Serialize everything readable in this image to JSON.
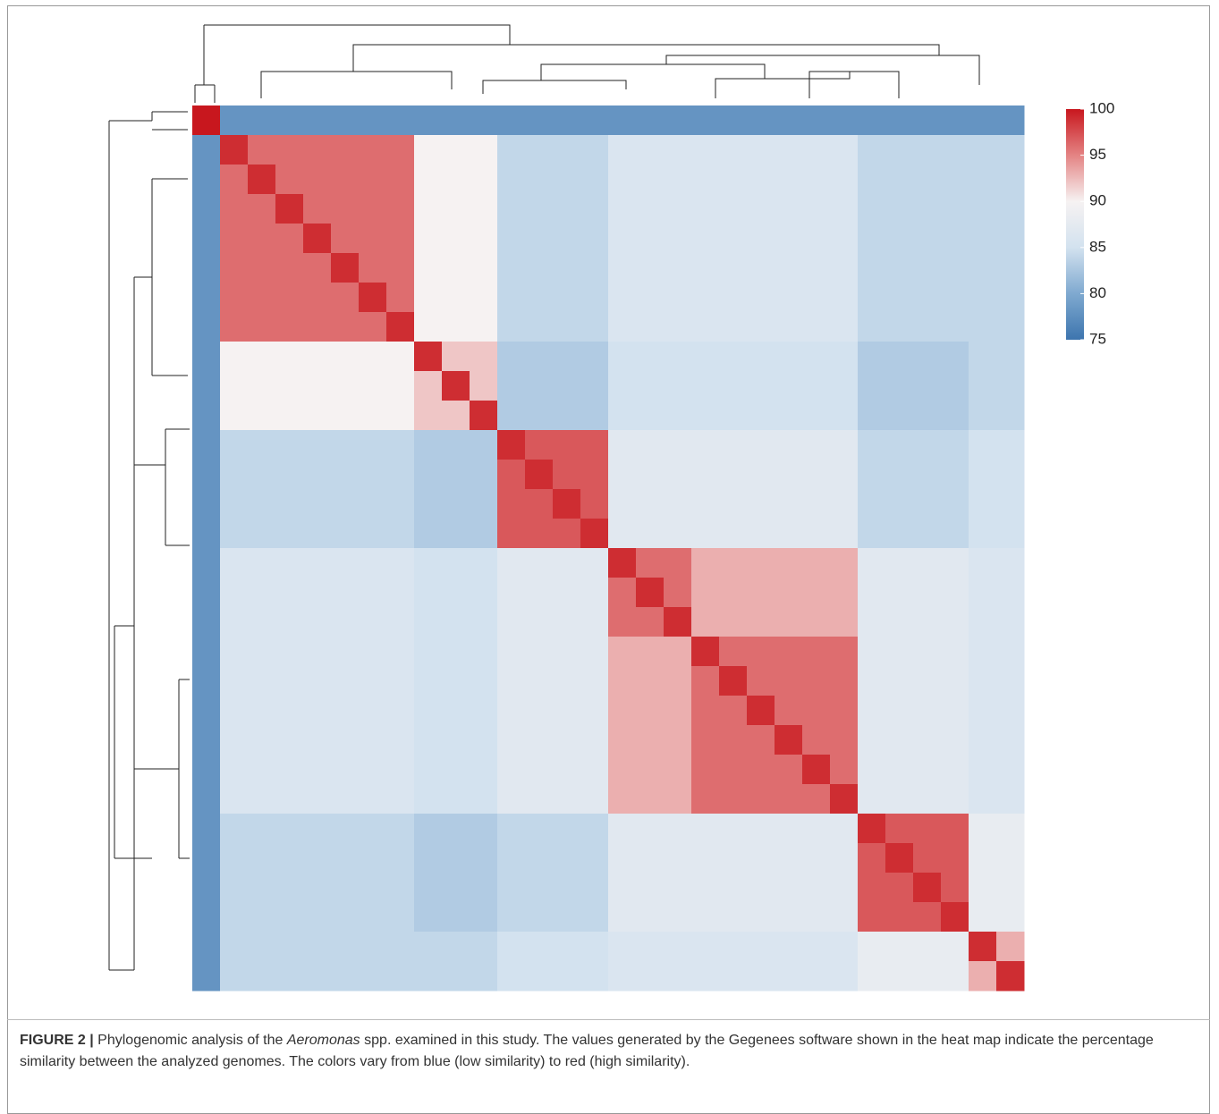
{
  "chart_data": {
    "type": "heatmap",
    "zlim": [
      75,
      100
    ],
    "zticks": [
      75,
      80,
      85,
      90,
      95,
      100
    ],
    "colors": [
      "#3d75ae",
      "#7fa9d0",
      "#d3e2ef",
      "#f6f2f2",
      "#e48383",
      "#c8171e"
    ],
    "z": [
      [
        100,
        78,
        78,
        78,
        78,
        78,
        78,
        78,
        78,
        78,
        78,
        78,
        78,
        78,
        78,
        78,
        78,
        78,
        78,
        78,
        78,
        78,
        78,
        78,
        78,
        78,
        78,
        78,
        78,
        78
      ],
      [
        78,
        99,
        96,
        96,
        96,
        96,
        96,
        96,
        90,
        90,
        90,
        84,
        84,
        84,
        84,
        86,
        86,
        86,
        86,
        86,
        86,
        86,
        86,
        86,
        84,
        84,
        84,
        84,
        84,
        84
      ],
      [
        78,
        96,
        99,
        96,
        96,
        96,
        96,
        96,
        90,
        90,
        90,
        84,
        84,
        84,
        84,
        86,
        86,
        86,
        86,
        86,
        86,
        86,
        86,
        86,
        84,
        84,
        84,
        84,
        84,
        84
      ],
      [
        78,
        96,
        96,
        99,
        96,
        96,
        96,
        96,
        90,
        90,
        90,
        84,
        84,
        84,
        84,
        86,
        86,
        86,
        86,
        86,
        86,
        86,
        86,
        86,
        84,
        84,
        84,
        84,
        84,
        84
      ],
      [
        78,
        96,
        96,
        96,
        99,
        96,
        96,
        96,
        90,
        90,
        90,
        84,
        84,
        84,
        84,
        86,
        86,
        86,
        86,
        86,
        86,
        86,
        86,
        86,
        84,
        84,
        84,
        84,
        84,
        84
      ],
      [
        78,
        96,
        96,
        96,
        96,
        99,
        96,
        96,
        90,
        90,
        90,
        84,
        84,
        84,
        84,
        86,
        86,
        86,
        86,
        86,
        86,
        86,
        86,
        86,
        84,
        84,
        84,
        84,
        84,
        84
      ],
      [
        78,
        96,
        96,
        96,
        96,
        96,
        99,
        96,
        90,
        90,
        90,
        84,
        84,
        84,
        84,
        86,
        86,
        86,
        86,
        86,
        86,
        86,
        86,
        86,
        84,
        84,
        84,
        84,
        84,
        84
      ],
      [
        78,
        96,
        96,
        96,
        96,
        96,
        96,
        99,
        90,
        90,
        90,
        84,
        84,
        84,
        84,
        86,
        86,
        86,
        86,
        86,
        86,
        86,
        86,
        86,
        84,
        84,
        84,
        84,
        84,
        84
      ],
      [
        78,
        90,
        90,
        90,
        90,
        90,
        90,
        90,
        99,
        92,
        92,
        83,
        83,
        83,
        83,
        85,
        85,
        85,
        85,
        85,
        85,
        85,
        85,
        85,
        83,
        83,
        83,
        83,
        84,
        84
      ],
      [
        78,
        90,
        90,
        90,
        90,
        90,
        90,
        90,
        92,
        99,
        92,
        83,
        83,
        83,
        83,
        85,
        85,
        85,
        85,
        85,
        85,
        85,
        85,
        85,
        83,
        83,
        83,
        83,
        84,
        84
      ],
      [
        78,
        90,
        90,
        90,
        90,
        90,
        90,
        90,
        92,
        92,
        99,
        83,
        83,
        83,
        83,
        85,
        85,
        85,
        85,
        85,
        85,
        85,
        85,
        85,
        83,
        83,
        83,
        83,
        84,
        84
      ],
      [
        78,
        84,
        84,
        84,
        84,
        84,
        84,
        84,
        83,
        83,
        83,
        99,
        97,
        97,
        97,
        87,
        87,
        87,
        87,
        87,
        87,
        87,
        87,
        87,
        84,
        84,
        84,
        84,
        85,
        85
      ],
      [
        78,
        84,
        84,
        84,
        84,
        84,
        84,
        84,
        83,
        83,
        83,
        97,
        99,
        97,
        97,
        87,
        87,
        87,
        87,
        87,
        87,
        87,
        87,
        87,
        84,
        84,
        84,
        84,
        85,
        85
      ],
      [
        78,
        84,
        84,
        84,
        84,
        84,
        84,
        84,
        83,
        83,
        83,
        97,
        97,
        99,
        97,
        87,
        87,
        87,
        87,
        87,
        87,
        87,
        87,
        87,
        84,
        84,
        84,
        84,
        85,
        85
      ],
      [
        78,
        84,
        84,
        84,
        84,
        84,
        84,
        84,
        83,
        83,
        83,
        97,
        97,
        97,
        99,
        87,
        87,
        87,
        87,
        87,
        87,
        87,
        87,
        87,
        84,
        84,
        84,
        84,
        85,
        85
      ],
      [
        78,
        86,
        86,
        86,
        86,
        86,
        86,
        86,
        85,
        85,
        85,
        87,
        87,
        87,
        87,
        99,
        96,
        96,
        93,
        93,
        93,
        93,
        93,
        93,
        87,
        87,
        87,
        87,
        86,
        86
      ],
      [
        78,
        86,
        86,
        86,
        86,
        86,
        86,
        86,
        85,
        85,
        85,
        87,
        87,
        87,
        87,
        96,
        99,
        96,
        93,
        93,
        93,
        93,
        93,
        93,
        87,
        87,
        87,
        87,
        86,
        86
      ],
      [
        78,
        86,
        86,
        86,
        86,
        86,
        86,
        86,
        85,
        85,
        85,
        87,
        87,
        87,
        87,
        96,
        96,
        99,
        93,
        93,
        93,
        93,
        93,
        93,
        87,
        87,
        87,
        87,
        86,
        86
      ],
      [
        78,
        86,
        86,
        86,
        86,
        86,
        86,
        86,
        85,
        85,
        85,
        87,
        87,
        87,
        87,
        93,
        93,
        93,
        99,
        96,
        96,
        96,
        96,
        96,
        87,
        87,
        87,
        87,
        86,
        86
      ],
      [
        78,
        86,
        86,
        86,
        86,
        86,
        86,
        86,
        85,
        85,
        85,
        87,
        87,
        87,
        87,
        93,
        93,
        93,
        96,
        99,
        96,
        96,
        96,
        96,
        87,
        87,
        87,
        87,
        86,
        86
      ],
      [
        78,
        86,
        86,
        86,
        86,
        86,
        86,
        86,
        85,
        85,
        85,
        87,
        87,
        87,
        87,
        93,
        93,
        93,
        96,
        96,
        99,
        96,
        96,
        96,
        87,
        87,
        87,
        87,
        86,
        86
      ],
      [
        78,
        86,
        86,
        86,
        86,
        86,
        86,
        86,
        85,
        85,
        85,
        87,
        87,
        87,
        87,
        93,
        93,
        93,
        96,
        96,
        96,
        99,
        96,
        96,
        87,
        87,
        87,
        87,
        86,
        86
      ],
      [
        78,
        86,
        86,
        86,
        86,
        86,
        86,
        86,
        85,
        85,
        85,
        87,
        87,
        87,
        87,
        93,
        93,
        93,
        96,
        96,
        96,
        96,
        99,
        96,
        87,
        87,
        87,
        87,
        86,
        86
      ],
      [
        78,
        86,
        86,
        86,
        86,
        86,
        86,
        86,
        85,
        85,
        85,
        87,
        87,
        87,
        87,
        93,
        93,
        93,
        96,
        96,
        96,
        96,
        96,
        99,
        87,
        87,
        87,
        87,
        86,
        86
      ],
      [
        78,
        84,
        84,
        84,
        84,
        84,
        84,
        84,
        83,
        83,
        83,
        84,
        84,
        84,
        84,
        87,
        87,
        87,
        87,
        87,
        87,
        87,
        87,
        87,
        99,
        97,
        97,
        97,
        88,
        88
      ],
      [
        78,
        84,
        84,
        84,
        84,
        84,
        84,
        84,
        83,
        83,
        83,
        84,
        84,
        84,
        84,
        87,
        87,
        87,
        87,
        87,
        87,
        87,
        87,
        87,
        97,
        99,
        97,
        97,
        88,
        88
      ],
      [
        78,
        84,
        84,
        84,
        84,
        84,
        84,
        84,
        83,
        83,
        83,
        84,
        84,
        84,
        84,
        87,
        87,
        87,
        87,
        87,
        87,
        87,
        87,
        87,
        97,
        97,
        99,
        97,
        88,
        88
      ],
      [
        78,
        84,
        84,
        84,
        84,
        84,
        84,
        84,
        83,
        83,
        83,
        84,
        84,
        84,
        84,
        87,
        87,
        87,
        87,
        87,
        87,
        87,
        87,
        87,
        97,
        97,
        97,
        99,
        88,
        88
      ],
      [
        78,
        84,
        84,
        84,
        84,
        84,
        84,
        84,
        84,
        84,
        84,
        85,
        85,
        85,
        85,
        86,
        86,
        86,
        86,
        86,
        86,
        86,
        86,
        86,
        88,
        88,
        88,
        88,
        99,
        93
      ],
      [
        78,
        84,
        84,
        84,
        84,
        84,
        84,
        84,
        84,
        84,
        84,
        85,
        85,
        85,
        85,
        86,
        86,
        86,
        86,
        86,
        86,
        86,
        86,
        86,
        88,
        88,
        88,
        88,
        93,
        99
      ]
    ]
  },
  "caption": {
    "label": "FIGURE 2 |",
    "text_before": "Phylogenomic analysis of the",
    "italic": "Aeromonas",
    "text_after": "spp. examined in this study. The values generated by the Gegenees software shown in the heat map indicate the percentage similarity between the analyzed genomes. The colors vary from blue (low similarity) to red (high similarity)."
  }
}
